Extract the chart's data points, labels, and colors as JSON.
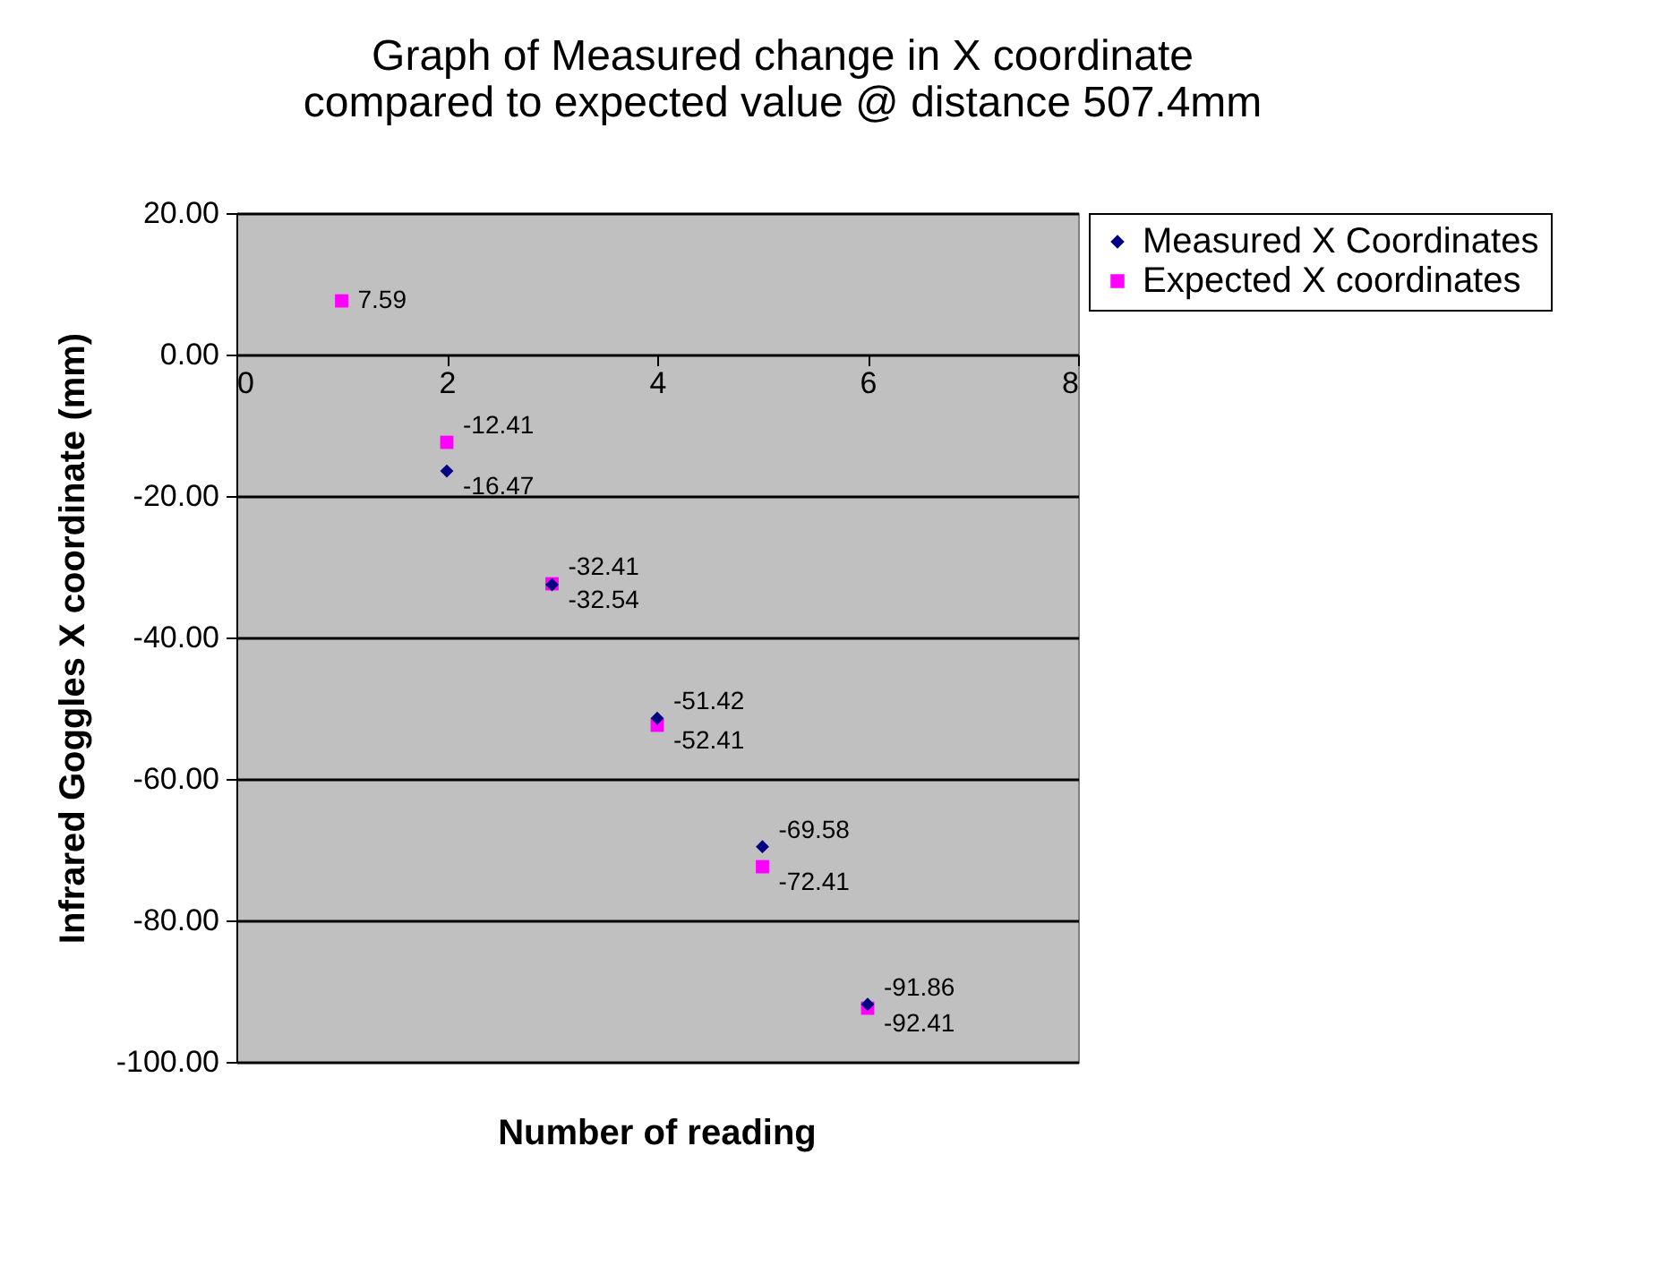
{
  "chart_data": {
    "type": "scatter",
    "title": [
      "Graph of Measured change in  X coordinate",
      "compared to expected value @ distance 507.4mm"
    ],
    "xlabel": "Number of reading",
    "ylabel": "Infrared Goggles X coordinate (mm)",
    "x": [
      1,
      2,
      3,
      4,
      5,
      6
    ],
    "series": [
      {
        "name": "Measured X Coordinates",
        "color": "#000080",
        "marker": "diamond",
        "values": [
          null,
          -16.47,
          -32.54,
          -51.42,
          -69.58,
          -91.86
        ]
      },
      {
        "name": "Expected X coordinates",
        "color": "#ff00ff",
        "marker": "square",
        "values": [
          7.59,
          -12.41,
          -32.41,
          -52.41,
          -72.41,
          -92.41
        ]
      }
    ],
    "xlim": [
      0,
      8
    ],
    "xticks": [
      0,
      2,
      4,
      6,
      8
    ],
    "ylim": [
      -100,
      20
    ],
    "yticks": [
      {
        "value": -100,
        "label": "-100.00"
      },
      {
        "value": -80,
        "label": "-80.00"
      },
      {
        "value": -60,
        "label": "-60.00"
      },
      {
        "value": -40,
        "label": "-40.00"
      },
      {
        "value": -20,
        "label": "-20.00"
      },
      {
        "value": 0,
        "label": "0.00"
      },
      {
        "value": 20,
        "label": "20.00"
      }
    ],
    "grid": "y",
    "legend": "right",
    "data_labels": true
  }
}
